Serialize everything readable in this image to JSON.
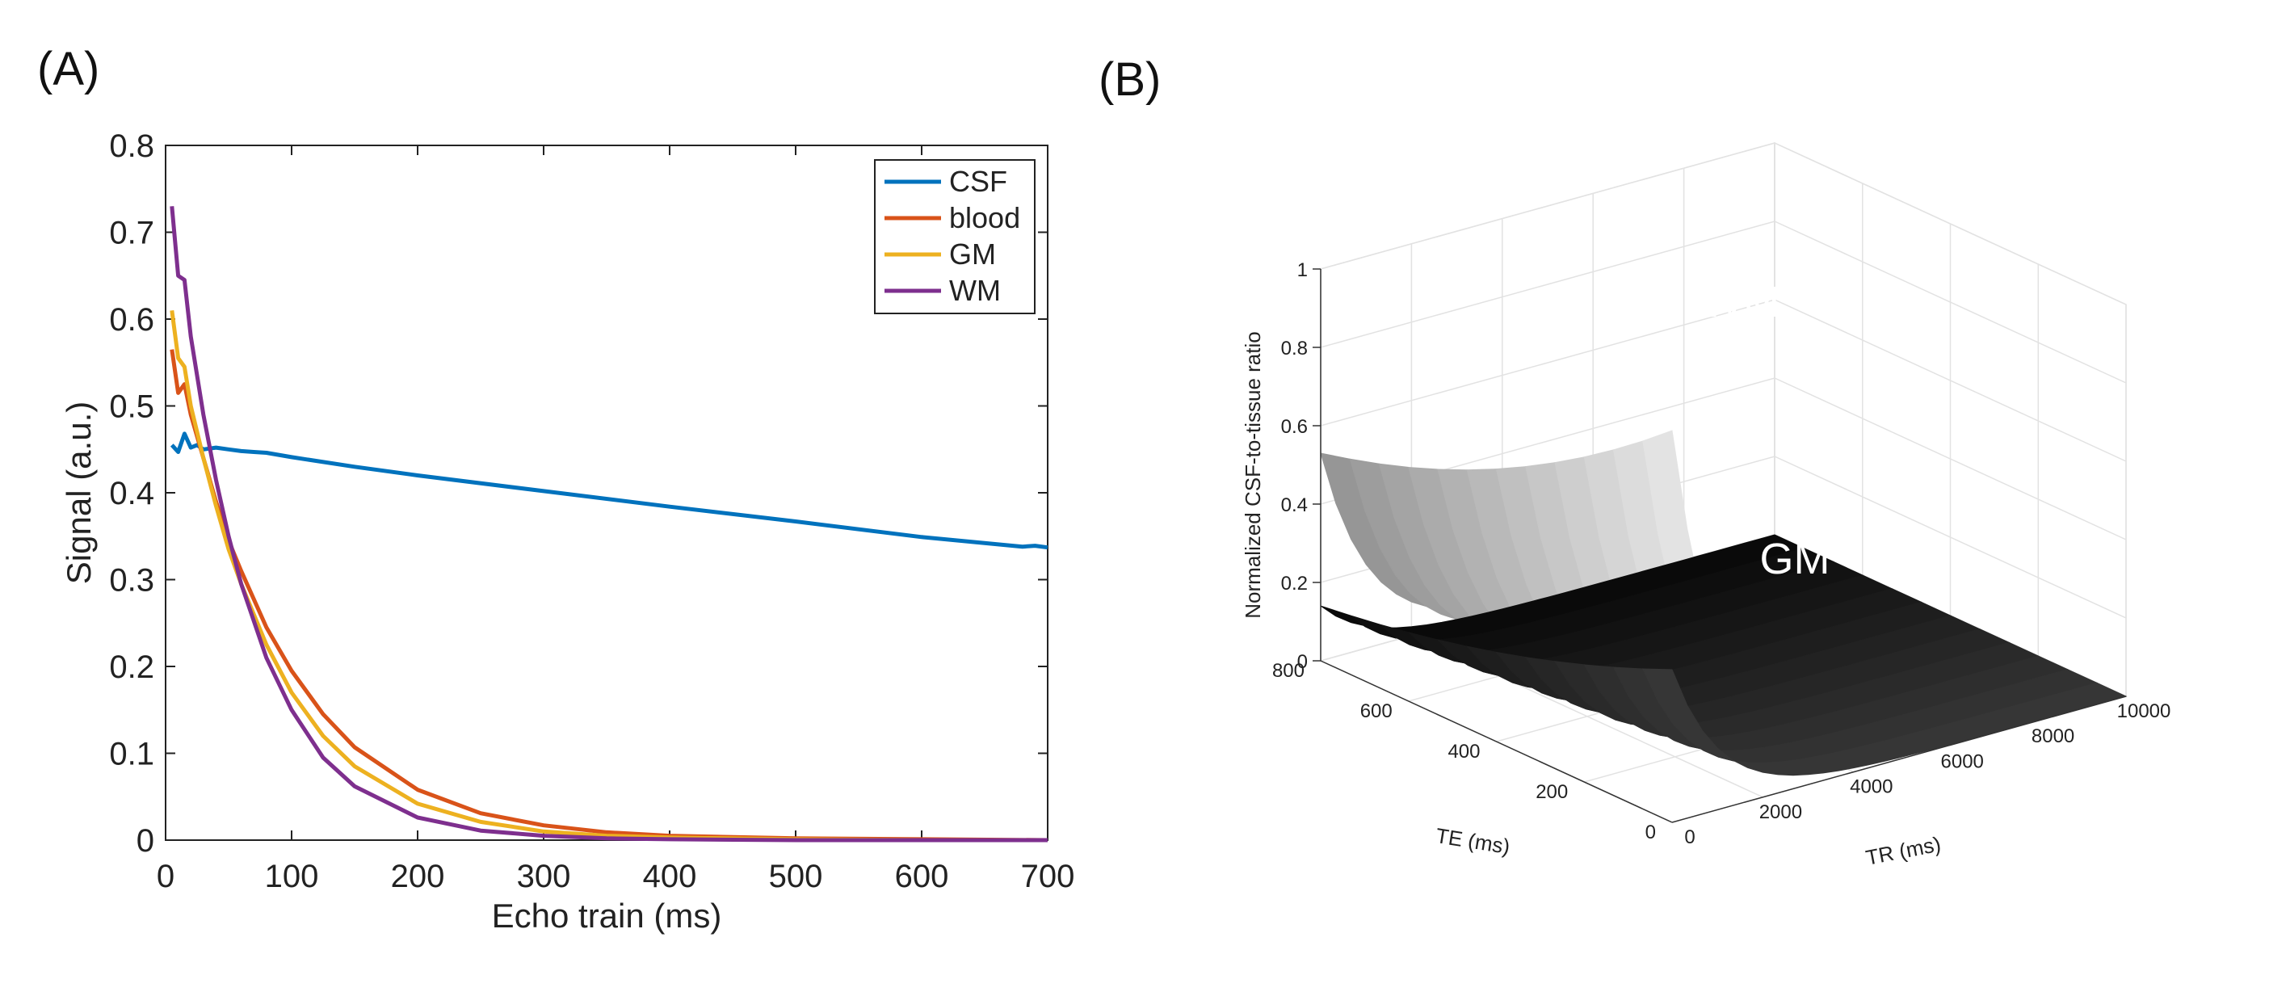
{
  "figure": {
    "panel_a_label": "(A)",
    "panel_b_label": "(B)"
  },
  "chart_data": [
    {
      "id": "A",
      "type": "line",
      "title": "",
      "xlabel": "Echo train (ms)",
      "ylabel": "Signal (a.u.)",
      "xlim": [
        0,
        700
      ],
      "ylim": [
        0,
        0.8
      ],
      "xticks": [
        0,
        100,
        200,
        300,
        400,
        500,
        600,
        700
      ],
      "yticks": [
        0,
        0.1,
        0.2,
        0.3,
        0.4,
        0.5,
        0.6,
        0.7,
        0.8
      ],
      "ytick_labels": [
        "0",
        "0.1",
        "0.2",
        "0.3",
        "0.4",
        "0.5",
        "0.6",
        "0.7",
        "0.8"
      ],
      "grid": false,
      "legend_position": "top-right",
      "series": [
        {
          "name": "CSF",
          "color": "#0072BD",
          "x": [
            5,
            10,
            15,
            20,
            25,
            30,
            40,
            50,
            60,
            70,
            80,
            100,
            150,
            200,
            300,
            400,
            500,
            600,
            680,
            690,
            700
          ],
          "y": [
            0.455,
            0.447,
            0.468,
            0.452,
            0.455,
            0.45,
            0.452,
            0.45,
            0.448,
            0.447,
            0.446,
            0.441,
            0.43,
            0.42,
            0.402,
            0.384,
            0.367,
            0.349,
            0.338,
            0.339,
            0.337
          ]
        },
        {
          "name": "blood",
          "color": "#D95319",
          "x": [
            5,
            10,
            15,
            20,
            30,
            40,
            50,
            60,
            80,
            100,
            125,
            150,
            200,
            250,
            300,
            350,
            400,
            500,
            600,
            700
          ],
          "y": [
            0.565,
            0.515,
            0.525,
            0.49,
            0.44,
            0.39,
            0.345,
            0.31,
            0.245,
            0.195,
            0.145,
            0.107,
            0.058,
            0.031,
            0.017,
            0.009,
            0.005,
            0.002,
            0.001,
            0.0
          ]
        },
        {
          "name": "GM",
          "color": "#EDB120",
          "x": [
            5,
            10,
            15,
            20,
            30,
            40,
            50,
            60,
            80,
            100,
            125,
            150,
            200,
            250,
            300,
            350,
            400,
            500,
            600,
            700
          ],
          "y": [
            0.61,
            0.555,
            0.545,
            0.5,
            0.44,
            0.385,
            0.335,
            0.295,
            0.225,
            0.17,
            0.12,
            0.085,
            0.042,
            0.021,
            0.01,
            0.005,
            0.003,
            0.001,
            0.0,
            0.0
          ]
        },
        {
          "name": "WM",
          "color": "#7E2F8E",
          "x": [
            5,
            10,
            15,
            20,
            30,
            40,
            50,
            60,
            80,
            100,
            125,
            150,
            200,
            250,
            300,
            350,
            400,
            500,
            600,
            700
          ],
          "y": [
            0.73,
            0.65,
            0.645,
            0.58,
            0.49,
            0.415,
            0.35,
            0.295,
            0.21,
            0.15,
            0.095,
            0.062,
            0.026,
            0.011,
            0.005,
            0.002,
            0.001,
            0.0,
            0.0,
            0.0
          ]
        }
      ]
    },
    {
      "id": "B",
      "type": "surface3d",
      "title": "",
      "xlabel": "TR (ms)",
      "ylabel": "TE (ms)",
      "zlabel": "Normalized CSF-to-tissue ratio",
      "xlim": [
        0,
        10000
      ],
      "ylim": [
        0,
        800
      ],
      "zlim": [
        0,
        1
      ],
      "xticks": [
        0,
        2000,
        4000,
        6000,
        8000,
        10000
      ],
      "yticks": [
        0,
        200,
        400,
        600,
        800
      ],
      "zticks": [
        0,
        0.2,
        0.4,
        0.6,
        0.8,
        1
      ],
      "ztick_labels": [
        "0",
        "0.2",
        "0.4",
        "0.6",
        "0.8",
        "1"
      ],
      "grid": true,
      "surfaces": [
        {
          "name": "WM",
          "color": "#d9d9d9",
          "value_at_TR0_TE800": 0.53,
          "value_at_TR0_TE0": 1.0,
          "value_at_TR10000": 0.0
        },
        {
          "name": "GM",
          "color": "#000000",
          "value_at_TR0_TE800": 0.14,
          "value_at_TR0_TE0": 0.39,
          "value_at_TR10000": 0.0
        }
      ],
      "annotations": [
        "WM",
        "GM"
      ]
    }
  ]
}
